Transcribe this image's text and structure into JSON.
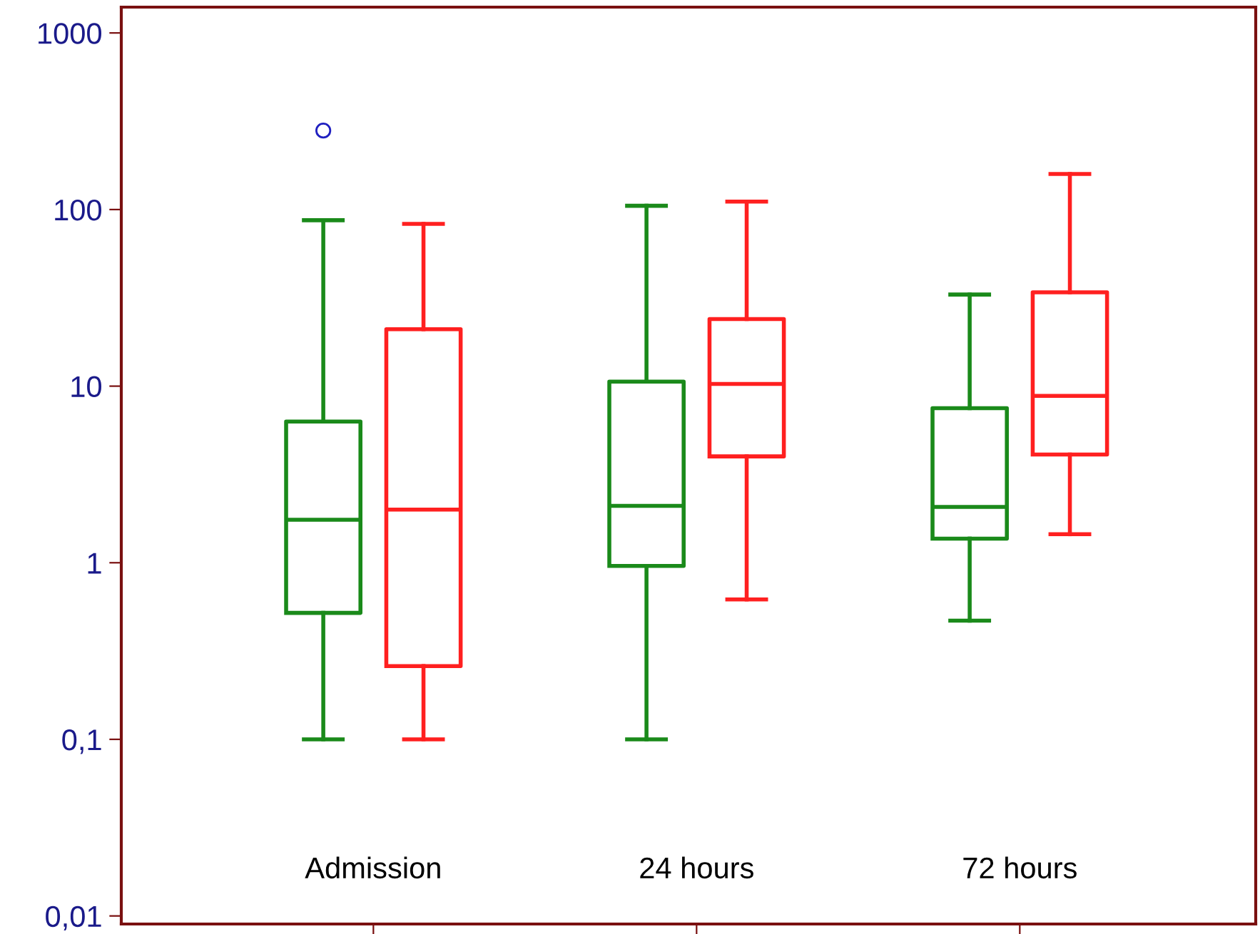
{
  "chart_data": {
    "type": "box",
    "categories": [
      "Admission",
      "24 hours",
      "72 hours"
    ],
    "series": [
      {
        "color": "#1a8a1a",
        "boxes": [
          {
            "low": 0.1,
            "q1": 0.52,
            "median": 1.75,
            "q3": 6.3,
            "high": 87,
            "outliers": [
              280
            ]
          },
          {
            "low": 0.1,
            "q1": 0.96,
            "median": 2.1,
            "q3": 10.6,
            "high": 105
          },
          {
            "low": 0.47,
            "q1": 1.37,
            "median": 2.07,
            "q3": 7.5,
            "high": 33
          }
        ]
      },
      {
        "color": "#ff2020",
        "boxes": [
          {
            "low": 0.1,
            "q1": 0.26,
            "median": 2.0,
            "q3": 21,
            "high": 83
          },
          {
            "low": 0.62,
            "q1": 4.0,
            "median": 10.3,
            "q3": 24,
            "high": 111
          },
          {
            "low": 1.45,
            "q1": 4.1,
            "median": 8.8,
            "q3": 34,
            "high": 159
          }
        ]
      }
    ],
    "log": true,
    "ylim": [
      0.009,
      1400
    ],
    "yticks": [
      {
        "value": 0.01,
        "label": "0,01"
      },
      {
        "value": 0.1,
        "label": "0,1"
      },
      1,
      10,
      100,
      1000
    ],
    "grid": false,
    "legend": false
  }
}
